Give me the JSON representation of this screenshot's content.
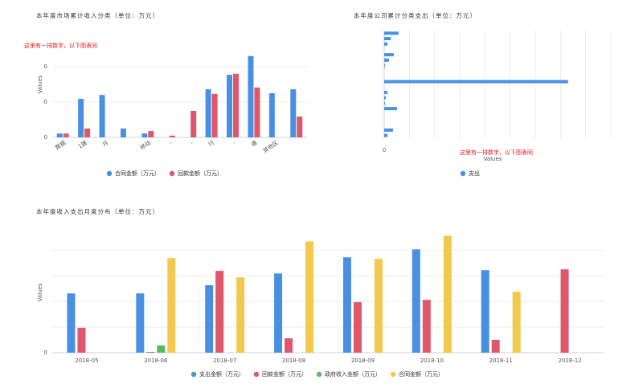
{
  "chart_data": [
    {
      "type": "bar",
      "title": "本年度市场累计收入分类（单位：万元）",
      "annotation": "这里有一排数字，以下图表同",
      "y_label": "Values",
      "categories": [
        "数据",
        "1建",
        "月",
        null,
        "移动",
        "-",
        "-",
        "行",
        "-",
        "通",
        "其他区",
        null
      ],
      "series": [
        {
          "name": "合同金额（万元）",
          "color": "#4a90e2",
          "values": [
            1.1,
            10.9,
            12,
            2.5,
            1.1,
            0,
            0,
            13.6,
            17.7,
            23,
            12.5,
            13.6
          ]
        },
        {
          "name": "回款金额（万元）",
          "color": "#e0566b",
          "values": [
            1.1,
            2.5,
            0,
            0,
            1.8,
            0.5,
            7.5,
            12.3,
            18,
            14.1,
            0,
            5.9
          ]
        }
      ],
      "ylim": [
        0,
        30
      ],
      "yticks": [
        0,
        {
          "value": 10,
          "label": "0"
        },
        {
          "value": 20,
          "label": "0"
        }
      ],
      "grid": true,
      "legend": "bottom"
    },
    {
      "type": "bar",
      "orientation": "horizontal",
      "title": "本年度公司累计分类支出（单位：万元）",
      "annotation": "这里有一排数字，以下图表同",
      "x_label": "Values",
      "categories": [
        null,
        null,
        null,
        null,
        null,
        null,
        null,
        null,
        null,
        null,
        null,
        null,
        null,
        null,
        null,
        null,
        null,
        null,
        null,
        null
      ],
      "series": [
        {
          "name": "支出",
          "color": "#4a90e2",
          "values": [
            0.57,
            0.26,
            0.13,
            0,
            0.38,
            0.19,
            0.03,
            0,
            0,
            7.3,
            0,
            0.13,
            0.06,
            0.03,
            0.51,
            0,
            0,
            0,
            0.35,
            0.13
          ]
        }
      ],
      "xlim": [
        0,
        9
      ],
      "xticks": [
        0,
        {
          "value": 1,
          "label": null
        },
        {
          "value": 2,
          "label": null
        },
        {
          "value": 3,
          "label": null
        },
        {
          "value": 4,
          "label": null
        },
        {
          "value": 5,
          "label": null
        },
        {
          "value": 6,
          "label": null
        },
        {
          "value": 7,
          "label": null
        },
        {
          "value": 8,
          "label": null
        },
        {
          "value": 9,
          "label": null
        }
      ],
      "grid": true,
      "legend": "bottom"
    },
    {
      "type": "bar",
      "title": "本年度收入支出月度分布（单位：万元）",
      "y_label": "Values",
      "categories": [
        "2018-05",
        "2018-06",
        "2018-07",
        "2018-08",
        "2018-09",
        "2018-10",
        "2018-11",
        "2018-12"
      ],
      "series": [
        {
          "name": "支出金额（万元）",
          "color": "#4a90e2",
          "values": [
            23.1,
            23.1,
            26.3,
            30.9,
            37.2,
            40.3,
            32.2,
            0
          ]
        },
        {
          "name": "回款金额（万元）",
          "color": "#e0566b",
          "values": [
            9.7,
            0.3,
            31.9,
            5.6,
            19.7,
            20.6,
            5,
            32.5
          ]
        },
        {
          "name": "政府收入金额（万元）",
          "color": "#5cb85c",
          "values": [
            0,
            2.8,
            0,
            0,
            0,
            0,
            0,
            0
          ]
        },
        {
          "name": "合同金额（万元）",
          "color": "#f2c94c",
          "values": [
            0,
            36.9,
            29.4,
            43.4,
            36.6,
            45.6,
            23.8,
            0
          ]
        }
      ],
      "ylim": [
        0,
        47
      ],
      "yticks": [
        0,
        {
          "value": 10,
          "label": null
        },
        {
          "value": 20,
          "label": null
        },
        {
          "value": 30,
          "label": null
        },
        {
          "value": 40,
          "label": null
        }
      ],
      "grid": true,
      "legend": "bottom"
    }
  ]
}
